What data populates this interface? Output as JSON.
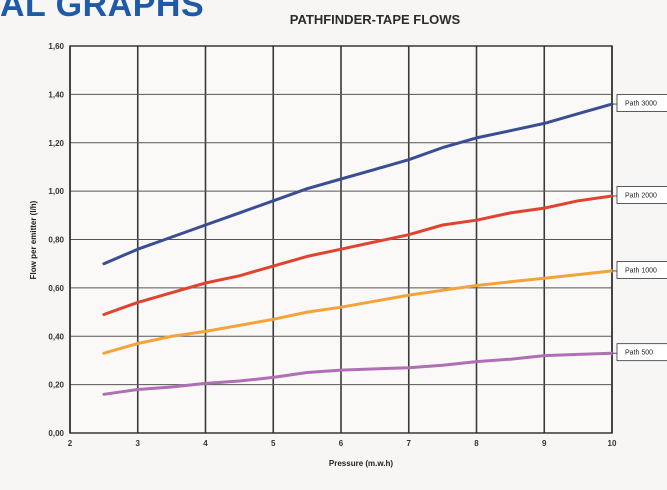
{
  "header_fragment": "AL GRAPHS",
  "chart_data": {
    "type": "line",
    "title": "PATHFINDER-TAPE FLOWS",
    "xlabel": "Pressure (m.w.h)",
    "ylabel": "Flow per emitter (l/h)",
    "xlim": [
      2,
      10
    ],
    "ylim": [
      0,
      1.6
    ],
    "x_ticks": [
      "2",
      "3",
      "4",
      "5",
      "6",
      "7",
      "8",
      "9",
      "10"
    ],
    "y_ticks": [
      "0,00",
      "0,20",
      "0,40",
      "0,60",
      "0,80",
      "1,00",
      "1,20",
      "1,40",
      "1,60"
    ],
    "grid": true,
    "series": [
      {
        "name": "Path 3000",
        "color": "#3b4e95",
        "x": [
          2.5,
          3,
          3.5,
          4,
          4.5,
          5,
          5.5,
          6,
          6.5,
          7,
          7.5,
          8,
          8.5,
          9,
          9.5,
          10
        ],
        "y": [
          0.7,
          0.76,
          0.81,
          0.86,
          0.91,
          0.96,
          1.01,
          1.05,
          1.09,
          1.13,
          1.18,
          1.22,
          1.25,
          1.28,
          1.32,
          1.36
        ]
      },
      {
        "name": "Path 2000",
        "color": "#e0442e",
        "x": [
          2.5,
          3,
          3.5,
          4,
          4.5,
          5,
          5.5,
          6,
          6.5,
          7,
          7.5,
          8,
          8.5,
          9,
          9.5,
          10
        ],
        "y": [
          0.49,
          0.54,
          0.58,
          0.62,
          0.65,
          0.69,
          0.73,
          0.76,
          0.79,
          0.82,
          0.86,
          0.88,
          0.91,
          0.93,
          0.96,
          0.98
        ]
      },
      {
        "name": "Path 1000",
        "color": "#f2a33a",
        "x": [
          2.5,
          3,
          3.5,
          4,
          4.5,
          5,
          5.5,
          6,
          6.5,
          7,
          7.5,
          8,
          8.5,
          9,
          9.5,
          10
        ],
        "y": [
          0.33,
          0.37,
          0.4,
          0.42,
          0.445,
          0.47,
          0.5,
          0.52,
          0.545,
          0.57,
          0.59,
          0.61,
          0.625,
          0.64,
          0.655,
          0.67
        ]
      },
      {
        "name": "Path 500",
        "color": "#b06fb4",
        "x": [
          2.5,
          3,
          3.5,
          4,
          4.5,
          5,
          5.5,
          6,
          6.5,
          7,
          7.5,
          8,
          8.5,
          9,
          9.5,
          10
        ],
        "y": [
          0.16,
          0.18,
          0.19,
          0.205,
          0.215,
          0.23,
          0.25,
          0.26,
          0.265,
          0.27,
          0.28,
          0.295,
          0.305,
          0.32,
          0.325,
          0.33
        ]
      }
    ],
    "legend": [
      {
        "label": "Path 3000",
        "y": 1.36
      },
      {
        "label": "Path 2000",
        "y": 0.98
      },
      {
        "label": "Path 1000",
        "y": 0.67
      },
      {
        "label": "Path 500",
        "y": 0.33
      }
    ]
  }
}
